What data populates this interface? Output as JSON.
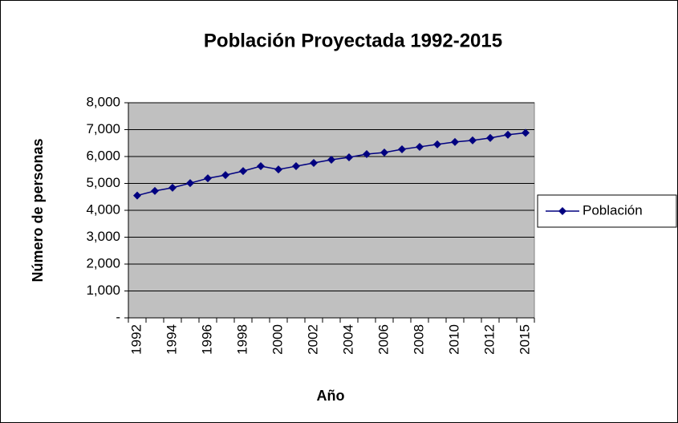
{
  "chart_data": {
    "type": "line",
    "title": "Población Proyectada 1992-2015",
    "x_label": "Año",
    "y_label": "Número de personas",
    "categories": [
      "1992",
      null,
      "1994",
      null,
      "1996",
      null,
      "1998",
      null,
      "2000",
      null,
      "2002",
      null,
      "2004",
      null,
      "2006",
      null,
      "2008",
      null,
      "2010",
      null,
      "2012",
      null,
      "2015"
    ],
    "series": [
      {
        "name": "Población",
        "color": "#000080",
        "values": [
          4550,
          4720,
          4840,
          5010,
          5190,
          5310,
          5460,
          5640,
          5520,
          5640,
          5760,
          5880,
          5970,
          6090,
          6150,
          6270,
          6360,
          6450,
          6540,
          6600,
          6690,
          6810,
          6880
        ]
      }
    ],
    "ylim": [
      0,
      8000
    ],
    "yticks": [
      {
        "value": 0,
        "label": "-"
      },
      {
        "value": 1000,
        "label": "1,000"
      },
      {
        "value": 2000,
        "label": "2,000"
      },
      {
        "value": 3000,
        "label": "3,000"
      },
      {
        "value": 4000,
        "label": "4,000"
      },
      {
        "value": 5000,
        "label": "5,000"
      },
      {
        "value": 6000,
        "label": "6,000"
      },
      {
        "value": 7000,
        "label": "7,000"
      },
      {
        "value": 8000,
        "label": "8,000"
      }
    ],
    "grid": true,
    "legend": "right"
  }
}
